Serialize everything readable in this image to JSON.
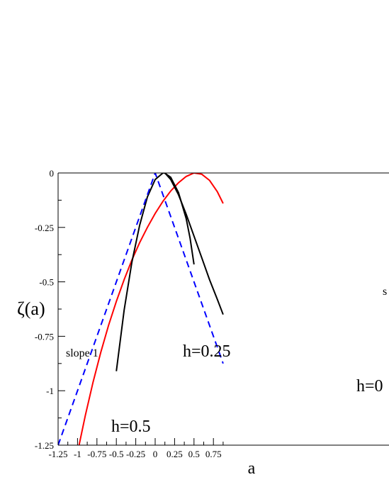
{
  "chart_data": {
    "type": "line",
    "xlabel": "a",
    "ylabel": "ζ(a)",
    "xlim": [
      -1.25,
      0.875
    ],
    "ylim": [
      -1.25,
      0
    ],
    "xticks": [
      "-1.25",
      "-1",
      "-0.75",
      "-0.5",
      "-0.25",
      "0",
      "0.25",
      "0.5",
      "0.75"
    ],
    "yticks": [
      "0",
      "-0.25",
      "-0.5",
      "-0.75",
      "-1",
      "-1.25"
    ],
    "grid": false,
    "colors": {
      "red": "#ff0000",
      "black": "#000000",
      "blue": "#0000ff"
    },
    "annotations": {
      "slope1": "slope 1",
      "h025": "h=0.25",
      "h05": "h=0.5",
      "s_cut": "s",
      "h0_cut": "h=0"
    },
    "series": [
      {
        "label": "h=0.5",
        "color": "#ff0000",
        "dash": "solid",
        "x": [
          -0.98,
          -0.9,
          -0.8,
          -0.7,
          -0.6,
          -0.5,
          -0.4,
          -0.3,
          -0.2,
          -0.1,
          0.0,
          0.1,
          0.2,
          0.3,
          0.4,
          0.5,
          0.6,
          0.7,
          0.8,
          0.875
        ],
        "y": [
          -1.25,
          -1.114,
          -0.961,
          -0.823,
          -0.7,
          -0.59,
          -0.49,
          -0.4,
          -0.32,
          -0.25,
          -0.186,
          -0.13,
          -0.083,
          -0.045,
          -0.016,
          0.0,
          -0.006,
          -0.034,
          -0.086,
          -0.14
        ]
      },
      {
        "label": "h=0.25",
        "color": "#000000",
        "dash": "solid",
        "x": [
          -0.5,
          -0.4,
          -0.3,
          -0.2,
          -0.1,
          0.0,
          0.1,
          0.12,
          0.2,
          0.3,
          0.4,
          0.45,
          0.5
        ],
        "y": [
          -0.91,
          -0.63,
          -0.41,
          -0.24,
          -0.11,
          -0.03,
          0.0,
          0.0,
          -0.02,
          -0.09,
          -0.21,
          -0.3,
          -0.42
        ]
      },
      {
        "label": "h=0",
        "color": "#000000",
        "dash": "solid",
        "x": [
          0.125,
          0.2,
          0.3,
          0.4,
          0.5,
          0.6,
          0.7,
          0.8,
          0.875
        ],
        "y": [
          0.0,
          -0.03,
          -0.1,
          -0.19,
          -0.29,
          -0.39,
          -0.49,
          -0.58,
          -0.65
        ]
      },
      {
        "label": "slope 1",
        "color": "#0000ff",
        "dash": "dashed",
        "x": [
          -1.25,
          0.0,
          0.875
        ],
        "y": [
          -1.25,
          0.0,
          -0.875
        ]
      }
    ]
  }
}
